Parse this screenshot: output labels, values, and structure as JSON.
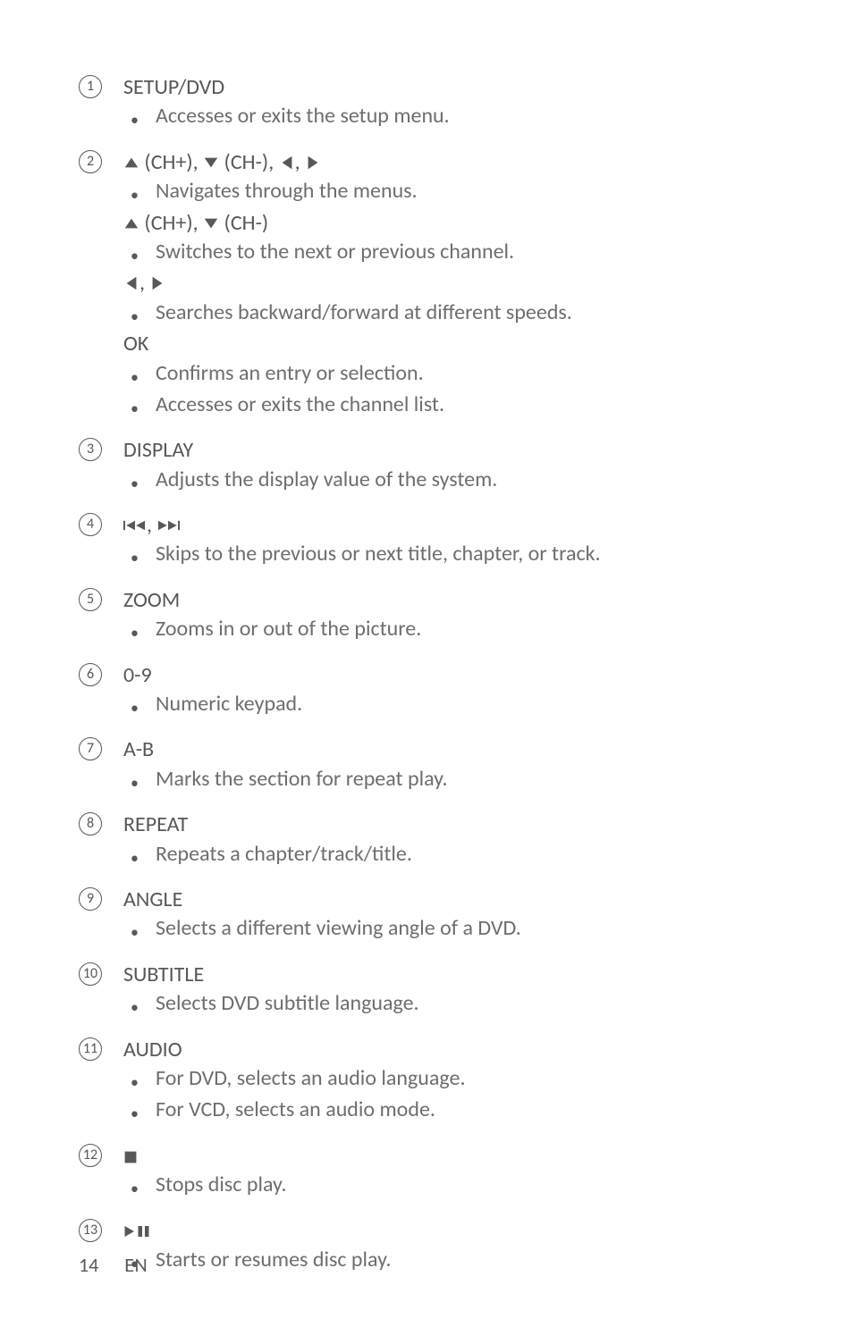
{
  "footer": {
    "page": "14",
    "lang": "EN"
  },
  "items": [
    {
      "num": "1",
      "heading_parts": [
        {
          "t": "SETUP/DVD",
          "style": "text"
        }
      ],
      "groups": [
        {
          "bullets": [
            "Accesses or exits the setup menu."
          ]
        }
      ]
    },
    {
      "num": "2",
      "heading_parts": [
        {
          "t": "up",
          "style": "glyph"
        },
        {
          "t": " (CH+), ",
          "style": "bold"
        },
        {
          "t": "down",
          "style": "glyph"
        },
        {
          "t": " (CH-), ",
          "style": "bold"
        },
        {
          "t": "left",
          "style": "glyph"
        },
        {
          "t": ", ",
          "style": "bold"
        },
        {
          "t": "right",
          "style": "glyph"
        }
      ],
      "groups": [
        {
          "bullets": [
            "Navigates through the menus."
          ]
        },
        {
          "sub_parts": [
            {
              "t": "up",
              "style": "glyph"
            },
            {
              "t": " (",
              "style": "text"
            },
            {
              "t": "CH+",
              "style": "bold"
            },
            {
              "t": "), ",
              "style": "text"
            },
            {
              "t": "down",
              "style": "glyph"
            },
            {
              "t": " (",
              "style": "text"
            },
            {
              "t": "CH-",
              "style": "bold"
            },
            {
              "t": ")",
              "style": "text"
            }
          ],
          "bullets": [
            "Switches to the next or previous channel."
          ]
        },
        {
          "sub_parts": [
            {
              "t": "left",
              "style": "glyph"
            },
            {
              "t": ", ",
              "style": "text"
            },
            {
              "t": "right",
              "style": "glyph"
            }
          ],
          "bullets": [
            "Searches backward/forward at different speeds."
          ]
        },
        {
          "sub_parts": [
            {
              "t": "OK",
              "style": "bold"
            }
          ],
          "bullets": [
            "Confirms an entry or selection.",
            "Accesses or exits the channel list."
          ]
        }
      ]
    },
    {
      "num": "3",
      "heading_parts": [
        {
          "t": "DISPLAY",
          "style": "text"
        }
      ],
      "groups": [
        {
          "bullets": [
            "Adjusts the display value of the system."
          ]
        }
      ]
    },
    {
      "num": "4",
      "heading_parts": [
        {
          "t": "prev",
          "style": "glyph"
        },
        {
          "t": ", ",
          "style": "bold"
        },
        {
          "t": "next",
          "style": "glyph"
        }
      ],
      "groups": [
        {
          "bullets": [
            "Skips to the previous or next title, chapter, or track."
          ]
        }
      ]
    },
    {
      "num": "5",
      "heading_parts": [
        {
          "t": "ZOOM",
          "style": "text"
        }
      ],
      "groups": [
        {
          "bullets": [
            "Zooms in or out of the picture."
          ]
        }
      ]
    },
    {
      "num": "6",
      "heading_parts": [
        {
          "t": "0-9",
          "style": "text"
        }
      ],
      "groups": [
        {
          "bullets": [
            "Numeric keypad."
          ]
        }
      ]
    },
    {
      "num": "7",
      "heading_parts": [
        {
          "t": "A-B",
          "style": "text"
        }
      ],
      "groups": [
        {
          "bullets": [
            "Marks the section for repeat play."
          ]
        }
      ]
    },
    {
      "num": "8",
      "heading_parts": [
        {
          "t": "REPEAT",
          "style": "text"
        }
      ],
      "groups": [
        {
          "bullets": [
            "Repeats a chapter/track/title."
          ]
        }
      ]
    },
    {
      "num": "9",
      "heading_parts": [
        {
          "t": "ANGLE",
          "style": "text"
        }
      ],
      "groups": [
        {
          "bullets": [
            "Selects a different viewing angle of a DVD."
          ]
        }
      ]
    },
    {
      "num": "10",
      "heading_parts": [
        {
          "t": "SUBTITLE",
          "style": "text"
        }
      ],
      "groups": [
        {
          "bullets": [
            "Selects DVD subtitle language."
          ]
        }
      ]
    },
    {
      "num": "11",
      "heading_parts": [
        {
          "t": "AUDIO",
          "style": "text"
        }
      ],
      "groups": [
        {
          "bullets": [
            "For DVD, selects an audio language.",
            "For VCD, selects an audio mode."
          ]
        }
      ]
    },
    {
      "num": "12",
      "heading_parts": [
        {
          "t": "stop",
          "style": "glyph"
        }
      ],
      "groups": [
        {
          "bullets": [
            "Stops disc play."
          ]
        }
      ]
    },
    {
      "num": "13",
      "heading_parts": [
        {
          "t": "playpause",
          "style": "glyph"
        }
      ],
      "groups": [
        {
          "bullets": [
            "Starts or resumes disc play."
          ]
        }
      ]
    }
  ]
}
